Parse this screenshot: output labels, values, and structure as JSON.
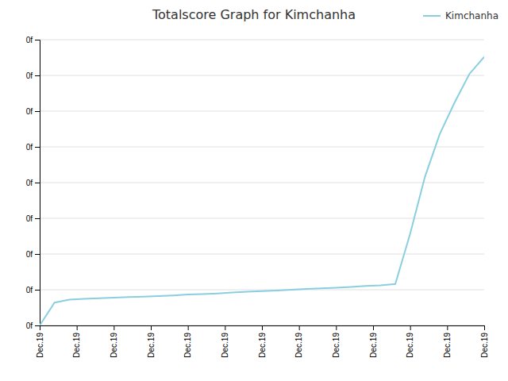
{
  "chart_data": {
    "type": "line",
    "title": "Totalscore Graph for Kimchanha",
    "x": [
      0,
      1,
      2,
      3,
      4,
      5,
      6,
      7,
      8,
      9,
      10,
      11,
      12,
      13,
      14,
      15,
      16,
      17,
      18,
      19,
      20,
      21,
      22,
      23,
      24,
      25,
      26,
      27,
      28,
      29,
      30
    ],
    "series": [
      {
        "name": "Kimchanha",
        "color": "#89cfe0",
        "values": [
          0.0,
          0.08,
          0.09,
          0.093,
          0.095,
          0.097,
          0.099,
          0.101,
          0.103,
          0.105,
          0.108,
          0.11,
          0.112,
          0.115,
          0.118,
          0.12,
          0.122,
          0.125,
          0.128,
          0.13,
          0.132,
          0.135,
          0.138,
          0.14,
          0.145,
          0.32,
          0.52,
          0.67,
          0.78,
          0.88,
          0.94
        ]
      }
    ],
    "xlim": [
      0,
      30
    ],
    "xticks": [
      {
        "value": 0,
        "label": "Dec.19"
      },
      {
        "value": 2.5,
        "label": "Dec.19"
      },
      {
        "value": 5,
        "label": "Dec.19"
      },
      {
        "value": 7.5,
        "label": "Dec.19"
      },
      {
        "value": 10,
        "label": "Dec.19"
      },
      {
        "value": 12.5,
        "label": "Dec.19"
      },
      {
        "value": 15,
        "label": "Dec.19"
      },
      {
        "value": 17.5,
        "label": "Dec.19"
      },
      {
        "value": 20,
        "label": "Dec.19"
      },
      {
        "value": 22.5,
        "label": "Dec.19"
      },
      {
        "value": 25,
        "label": "Dec.19"
      },
      {
        "value": 27.5,
        "label": "Dec.19"
      },
      {
        "value": 30,
        "label": "Dec.19"
      }
    ],
    "ylim": [
      0,
      1.0
    ],
    "yticks": [
      {
        "value": 0,
        "label": "0f"
      },
      {
        "value": 0.125,
        "label": "0f"
      },
      {
        "value": 0.25,
        "label": "0f"
      },
      {
        "value": 0.375,
        "label": "0f"
      },
      {
        "value": 0.5,
        "label": "0f"
      },
      {
        "value": 0.625,
        "label": "0f"
      },
      {
        "value": 0.75,
        "label": "0f"
      },
      {
        "value": 0.875,
        "label": "0f"
      },
      {
        "value": 1.0,
        "label": "0f"
      }
    ],
    "grid": true,
    "legend": "upper right"
  }
}
